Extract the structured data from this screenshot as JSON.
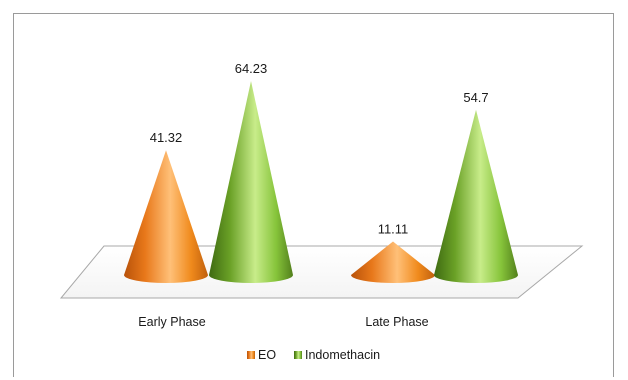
{
  "chart_data": {
    "type": "bar",
    "style": "3d-cone",
    "categories": [
      "Early Phase",
      "Late Phase"
    ],
    "series": [
      {
        "name": "EO",
        "values": [
          41.32,
          11.11
        ],
        "color": "#f08a1c"
      },
      {
        "name": "Indomethacin",
        "values": [
          64.23,
          54.7
        ],
        "color": "#7ab32e"
      }
    ],
    "data_labels": [
      [
        "41.32",
        "11.11"
      ],
      [
        "64.23",
        "54.7"
      ]
    ],
    "title": "",
    "xlabel": "",
    "ylabel": "",
    "ylim": [
      0,
      70
    ],
    "grid": false,
    "legend": "bottom"
  }
}
